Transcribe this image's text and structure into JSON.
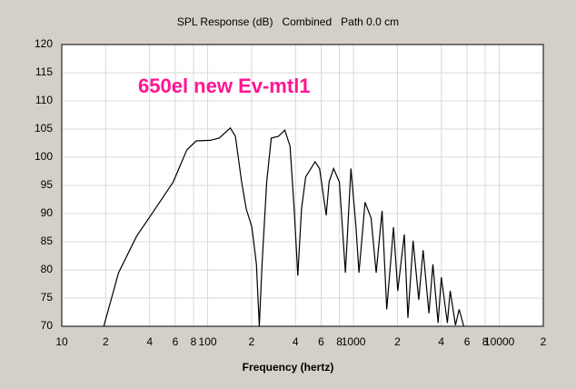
{
  "chart_data": {
    "type": "line",
    "title": "SPL Response (dB)   Combined   Path 0.0 cm",
    "annotation": "650el new Ev-mtl1",
    "x_label": "Frequency (hertz)",
    "x_log": true,
    "grid": true,
    "xlim": [
      10,
      20000
    ],
    "ylim": [
      70,
      120
    ],
    "xticks": [
      10,
      {
        "value": 20,
        "label": "2"
      },
      {
        "value": 40,
        "label": "4"
      },
      {
        "value": 60,
        "label": "6"
      },
      {
        "value": 80,
        "label": "8"
      },
      100,
      {
        "value": 200,
        "label": "2"
      },
      {
        "value": 400,
        "label": "4"
      },
      {
        "value": 600,
        "label": "6"
      },
      {
        "value": 800,
        "label": "8"
      },
      1000,
      {
        "value": 2000,
        "label": "2"
      },
      {
        "value": 4000,
        "label": "4"
      },
      {
        "value": 6000,
        "label": "6"
      },
      {
        "value": 8000,
        "label": "8"
      },
      10000,
      {
        "value": 20000,
        "label": "2"
      }
    ],
    "yticks": [
      70,
      75,
      80,
      85,
      90,
      95,
      100,
      105,
      110,
      115,
      120
    ],
    "x": [
      19.4,
      24.5,
      32.6,
      43.6,
      58,
      72,
      83.5,
      104,
      120,
      143,
      155,
      171,
      184,
      201,
      216,
      226,
      236,
      254,
      273,
      305,
      338,
      367,
      392,
      415,
      440,
      470,
      545,
      585,
      650,
      680,
      730,
      800,
      880,
      960,
      1040,
      1090,
      1200,
      1320,
      1430,
      1570,
      1690,
      1880,
      2010,
      2230,
      2360,
      2560,
      2800,
      3000,
      3290,
      3500,
      3800,
      4000,
      4400,
      4600,
      5000,
      5300,
      5700
    ],
    "series": [
      {
        "name": "SPL",
        "color": "#000000",
        "values": [
          70,
          79.5,
          86,
          90.8,
          95.6,
          101.3,
          102.9,
          103,
          103.4,
          105.2,
          103.7,
          95.6,
          90.8,
          87.6,
          81,
          70,
          81,
          95.6,
          103.4,
          103.7,
          104.8,
          102,
          90.8,
          79,
          90.8,
          96.5,
          99.2,
          98,
          89.7,
          95.6,
          98,
          95.6,
          79.5,
          98,
          87.6,
          79.5,
          92,
          89.2,
          79.5,
          90.5,
          73,
          87.6,
          76.3,
          86.3,
          71.5,
          85.2,
          74.7,
          83.5,
          72.3,
          81,
          70.6,
          78.7,
          70.6,
          76.3,
          70.2,
          73,
          70
        ]
      }
    ]
  }
}
